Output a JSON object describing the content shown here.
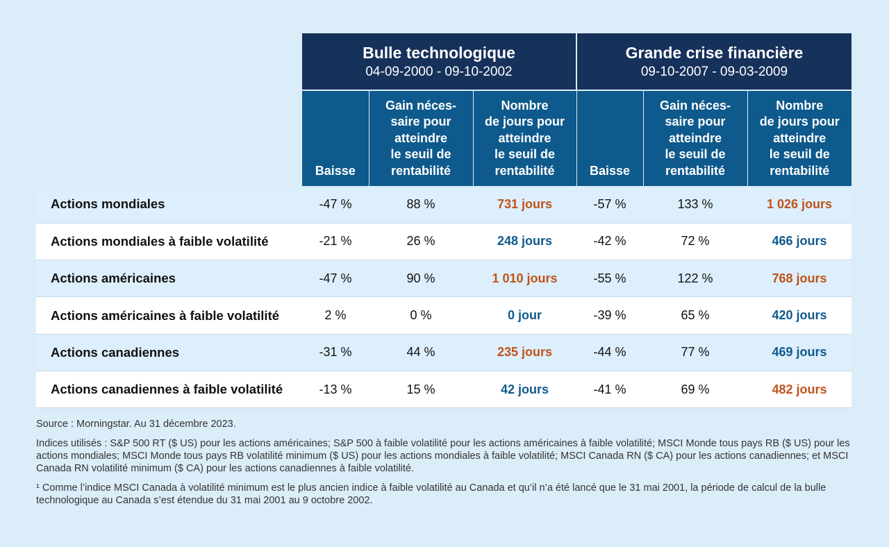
{
  "groups": [
    {
      "title": "Bulle technologique",
      "dates": "04-09-2000 - 09-10-2002"
    },
    {
      "title": "Grande crise financière",
      "dates": "09-10-2007 - 09-03-2009"
    }
  ],
  "subheaders": [
    "Baisse",
    "Gain néces-\nsaire pour\natteindre\nle seuil de\nrentabilité",
    "Nombre\nde jours pour\natteindre\nle seuil de\nrentabilité"
  ],
  "colors": {
    "orange": "#c0531a",
    "blue": "#0e5a8c",
    "navy": "#16315a"
  },
  "rows": [
    {
      "name": "Actions mondiales",
      "cells": [
        "-47 %",
        "88 %",
        "731 jours",
        "-57 %",
        "133 %",
        "1 026 jours"
      ],
      "days_colors": [
        "orange",
        "orange"
      ]
    },
    {
      "name": "Actions mondiales à faible volatilité",
      "cells": [
        "-21 %",
        "26 %",
        "248 jours",
        "-42 %",
        "72 %",
        "466 jours"
      ],
      "days_colors": [
        "blue",
        "blue"
      ]
    },
    {
      "name": "Actions américaines",
      "cells": [
        "-47 %",
        "90 %",
        "1 010 jours",
        "-55 %",
        "122 %",
        "768 jours"
      ],
      "days_colors": [
        "orange",
        "orange"
      ]
    },
    {
      "name": "Actions américaines à faible volatilité",
      "cells": [
        "2 %",
        "0 %",
        "0 jour",
        "-39 %",
        "65 %",
        "420 jours"
      ],
      "days_colors": [
        "blue",
        "blue"
      ]
    },
    {
      "name": "Actions canadiennes",
      "cells": [
        "-31 %",
        "44 %",
        "235 jours",
        "-44 %",
        "77 %",
        "469 jours"
      ],
      "days_colors": [
        "orange",
        "blue"
      ]
    },
    {
      "name": "Actions canadiennes à faible volatilité",
      "cells": [
        "-13 %",
        "15 %",
        "42 jours",
        "-41 %",
        "69 %",
        "482 jours"
      ],
      "days_colors": [
        "blue",
        "orange"
      ]
    }
  ],
  "notes": {
    "source": "Source : Morningstar. Au 31 décembre 2023.",
    "indices": "Indices utilisés : S&P 500 RT ($ US) pour les actions américaines; S&P 500 à faible volatilité pour les actions américaines à faible volatilité; MSCI Monde tous pays RB ($ US) pour les actions mondiales; MSCI Monde tous pays RB volatilité minimum ($ US) pour les actions mondiales à faible volatilité; MSCI Canada RN ($ CA) pour les actions canadiennes; et MSCI Canada RN volatilité minimum ($ CA) pour les actions canadiennes à faible volatilité.",
    "footnote": "¹ Comme l’indice MSCI Canada à volatilité minimum est le plus ancien indice à faible volatilité au Canada et qu’il n’a été lancé que le 31 mai 2001, la période de calcul de la bulle technologique au Canada s’est étendue du 31 mai 2001 au 9 octobre 2002."
  }
}
